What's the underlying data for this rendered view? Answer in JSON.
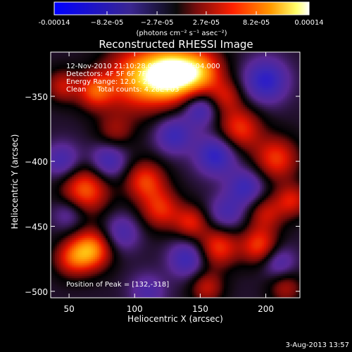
{
  "chart_data": {
    "type": "heatmap",
    "title": "Reconstructed RHESSI Image",
    "xlabel": "Heliocentric X (arcsec)",
    "ylabel": "Heliocentric Y (arcsec)",
    "xlim": [
      36,
      226
    ],
    "ylim": [
      -505,
      -316
    ],
    "x_ticks": [
      50,
      100,
      150,
      200
    ],
    "y_ticks": [
      -350,
      -400,
      -450,
      -500
    ],
    "colorbar": {
      "colormap": "fire (blue-black-red-yellow-white)",
      "range": [
        -0.00014,
        0.00014
      ],
      "tick_values": [
        -0.00014,
        -8.2e-05,
        -2.7e-05,
        2.7e-05,
        8.2e-05,
        0.00014
      ],
      "tick_labels": [
        "-0.00014",
        "−8.2e-05",
        "−2.7e-05",
        "2.7e-05",
        "8.2e-05",
        "0.00014"
      ],
      "unit_label": "(photons cm⁻² s⁻¹ asec⁻²)"
    },
    "annotations": [
      "12-Nov-2010 21:10:28.000 to 21:14:04.000",
      "Detectors: 4F 5F 6F 7F 8F, Att 0",
      "Energy Range: 12.0 - 25.0 keV",
      "Clean     Total counts: 4.28E+03",
      "Position of Peak = [132,-318]"
    ],
    "peak": {
      "x": 132,
      "y": -318
    },
    "map_blobs": [
      {
        "x": 128,
        "y": -333,
        "v": 1.0,
        "s": 14
      },
      {
        "x": 103,
        "y": -336,
        "v": 0.75,
        "s": 18
      },
      {
        "x": 150,
        "y": -331,
        "v": 0.7,
        "s": 13
      },
      {
        "x": 70,
        "y": -346,
        "v": 0.55,
        "s": 10
      },
      {
        "x": 45,
        "y": -342,
        "v": 0.4,
        "s": 9
      },
      {
        "x": 62,
        "y": -422,
        "v": 0.65,
        "s": 13
      },
      {
        "x": 108,
        "y": -415,
        "v": 0.55,
        "s": 11
      },
      {
        "x": 120,
        "y": -437,
        "v": 0.5,
        "s": 11
      },
      {
        "x": 143,
        "y": -447,
        "v": 0.45,
        "s": 9
      },
      {
        "x": 180,
        "y": -375,
        "v": 0.55,
        "s": 12
      },
      {
        "x": 208,
        "y": -398,
        "v": 0.55,
        "s": 12
      },
      {
        "x": 200,
        "y": -440,
        "v": 0.4,
        "s": 10
      },
      {
        "x": 67,
        "y": -468,
        "v": 0.75,
        "s": 11
      },
      {
        "x": 52,
        "y": -475,
        "v": 0.45,
        "s": 10
      },
      {
        "x": 164,
        "y": -466,
        "v": 0.55,
        "s": 11
      },
      {
        "x": 195,
        "y": -465,
        "v": 0.55,
        "s": 10
      },
      {
        "x": 220,
        "y": -430,
        "v": 0.45,
        "s": 9
      },
      {
        "x": 85,
        "y": -377,
        "v": 0.3,
        "s": 10
      },
      {
        "x": 215,
        "y": -497,
        "v": 0.35,
        "s": 9
      },
      {
        "x": 155,
        "y": -497,
        "v": 0.4,
        "s": 9
      },
      {
        "x": 170,
        "y": -350,
        "v": 0.35,
        "s": 9
      },
      {
        "x": 80,
        "y": -400,
        "v": -0.45,
        "s": 10
      },
      {
        "x": 130,
        "y": -380,
        "v": -0.45,
        "s": 10
      },
      {
        "x": 162,
        "y": -395,
        "v": -0.55,
        "s": 11
      },
      {
        "x": 150,
        "y": -360,
        "v": -0.45,
        "s": 9
      },
      {
        "x": 90,
        "y": -455,
        "v": -0.35,
        "s": 10
      },
      {
        "x": 140,
        "y": -475,
        "v": -0.45,
        "s": 10
      },
      {
        "x": 185,
        "y": -420,
        "v": -0.45,
        "s": 10
      },
      {
        "x": 170,
        "y": -440,
        "v": -0.35,
        "s": 10
      },
      {
        "x": 200,
        "y": -338,
        "v": -0.55,
        "s": 12
      },
      {
        "x": 210,
        "y": -478,
        "v": -0.35,
        "s": 9
      },
      {
        "x": 110,
        "y": -500,
        "v": -0.3,
        "s": 10
      },
      {
        "x": 50,
        "y": -440,
        "v": -0.3,
        "s": 9
      },
      {
        "x": 45,
        "y": -400,
        "v": -0.4,
        "s": 10
      }
    ]
  },
  "footer": {
    "date": "3-Aug-2013 13:57"
  }
}
